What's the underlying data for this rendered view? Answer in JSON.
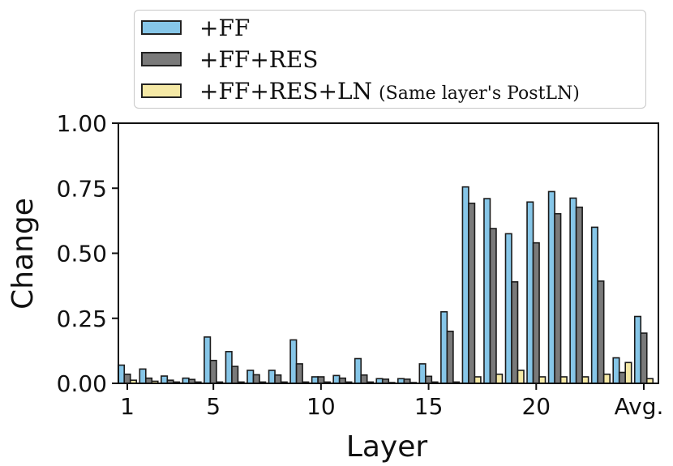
{
  "colors": {
    "ff": "#86c6e8",
    "ffres": "#7a7a7a",
    "ffresln": "#f5e9a6",
    "edge": "#1a1a1a"
  },
  "chart_data": {
    "type": "bar",
    "xlabel": "Layer",
    "ylabel": "Change",
    "ylim": [
      0,
      1.0
    ],
    "yticks": [
      "0.00",
      "0.25",
      "0.50",
      "0.75",
      "1.00"
    ],
    "ytick_values": [
      0,
      0.25,
      0.5,
      0.75,
      1.0
    ],
    "xtick_labels": [
      "1",
      "5",
      "10",
      "15",
      "20",
      "Avg."
    ],
    "xtick_categories": [
      "1",
      "5",
      "10",
      "15",
      "20",
      "Avg."
    ],
    "categories": [
      "1",
      "2",
      "3",
      "4",
      "5",
      "6",
      "7",
      "8",
      "9",
      "10",
      "11",
      "12",
      "13",
      "14",
      "15",
      "16",
      "17",
      "18",
      "19",
      "20",
      "21",
      "22",
      "23",
      "24",
      "Avg."
    ],
    "series": [
      {
        "name": "+FF",
        "label_main": "+FF",
        "note": "",
        "values": [
          0.07,
          0.055,
          0.028,
          0.02,
          0.178,
          0.122,
          0.05,
          0.05,
          0.167,
          0.025,
          0.03,
          0.095,
          0.018,
          0.018,
          0.075,
          0.275,
          0.755,
          0.71,
          0.575,
          0.697,
          0.737,
          0.712,
          0.6,
          0.098,
          0.257
        ]
      },
      {
        "name": "+FF+RES",
        "label_main": "+FF+RES",
        "note": "",
        "values": [
          0.035,
          0.02,
          0.012,
          0.015,
          0.088,
          0.065,
          0.033,
          0.032,
          0.075,
          0.025,
          0.02,
          0.032,
          0.016,
          0.016,
          0.027,
          0.2,
          0.692,
          0.595,
          0.39,
          0.54,
          0.652,
          0.677,
          0.393,
          0.042,
          0.193
        ]
      },
      {
        "name": "+FF+RES+LN",
        "label_main": "+FF+RES+LN",
        "note": "(Same layer's PostLN)",
        "values": [
          0.012,
          0.008,
          0.005,
          0.005,
          0.005,
          0.005,
          0.005,
          0.005,
          0.005,
          0.005,
          0.005,
          0.005,
          0.003,
          0.003,
          0.005,
          0.005,
          0.025,
          0.035,
          0.05,
          0.025,
          0.025,
          0.025,
          0.035,
          0.08,
          0.018
        ]
      }
    ]
  }
}
